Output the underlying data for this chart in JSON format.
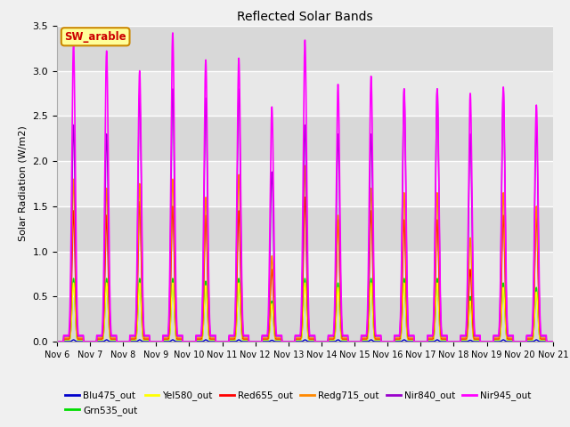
{
  "title": "Reflected Solar Bands",
  "ylabel": "Solar Radiation (W/m2)",
  "annotation": "SW_arable",
  "ylim": [
    0,
    3.5
  ],
  "yticks": [
    0.0,
    0.5,
    1.0,
    1.5,
    2.0,
    2.5,
    3.0,
    3.5
  ],
  "xtick_labels": [
    "Nov 6",
    "Nov 7",
    "Nov 8",
    "Nov 9",
    "Nov 10",
    "Nov 11",
    "Nov 12",
    "Nov 13",
    "Nov 14",
    "Nov 15",
    "Nov 16",
    "Nov 17",
    "Nov 18",
    "Nov 19",
    "Nov 20",
    "Nov 21"
  ],
  "series": {
    "Blu475_out": {
      "color": "#0000cc",
      "lw": 1.0
    },
    "Grn535_out": {
      "color": "#00dd00",
      "lw": 1.0
    },
    "Yel580_out": {
      "color": "#ffff00",
      "lw": 1.0
    },
    "Red655_out": {
      "color": "#ff0000",
      "lw": 1.0
    },
    "Redg715_out": {
      "color": "#ff8800",
      "lw": 1.0
    },
    "Nir840_out": {
      "color": "#9900cc",
      "lw": 1.0
    },
    "Nir945_out": {
      "color": "#ff00ff",
      "lw": 1.2
    }
  },
  "fig_bg": "#f0f0f0",
  "plot_bg": "#e8e8e8",
  "grid_color": "#ffffff",
  "band_colors": [
    "#d8d8d8",
    "#e8e8e8"
  ],
  "annotation_bg": "#ffff99",
  "annotation_fg": "#cc0000",
  "annotation_border": "#cc8800",
  "n_days": 15,
  "day_peaks_nir945": [
    3.3,
    3.22,
    3.0,
    3.42,
    3.12,
    3.14,
    2.6,
    3.34,
    2.85,
    2.94,
    2.8,
    2.8,
    2.75,
    2.82,
    2.62
  ],
  "day_peaks_nir840": [
    2.4,
    2.3,
    2.75,
    2.8,
    2.7,
    2.8,
    1.88,
    2.4,
    2.3,
    2.3,
    2.8,
    2.8,
    2.3,
    2.8,
    2.4
  ],
  "day_peaks_redg": [
    1.8,
    1.7,
    1.75,
    1.8,
    1.6,
    1.85,
    0.95,
    1.95,
    1.4,
    1.7,
    1.65,
    1.65,
    1.15,
    1.65,
    1.5
  ],
  "day_peaks_red": [
    1.45,
    1.4,
    1.55,
    1.5,
    1.4,
    1.45,
    0.8,
    1.6,
    1.35,
    1.45,
    1.35,
    1.35,
    0.8,
    1.4,
    1.4
  ],
  "day_peaks_yel": [
    0.65,
    0.65,
    0.65,
    0.65,
    0.62,
    0.65,
    0.42,
    0.65,
    0.6,
    0.65,
    0.65,
    0.65,
    0.45,
    0.6,
    0.55
  ],
  "day_peaks_grn": [
    0.7,
    0.7,
    0.7,
    0.7,
    0.67,
    0.7,
    0.45,
    0.7,
    0.65,
    0.7,
    0.7,
    0.7,
    0.5,
    0.65,
    0.6
  ],
  "day_peaks_blu": [
    0.02,
    0.02,
    0.02,
    0.02,
    0.02,
    0.02,
    0.015,
    0.02,
    0.02,
    0.02,
    0.02,
    0.02,
    0.015,
    0.02,
    0.02
  ],
  "sigma": 0.055
}
